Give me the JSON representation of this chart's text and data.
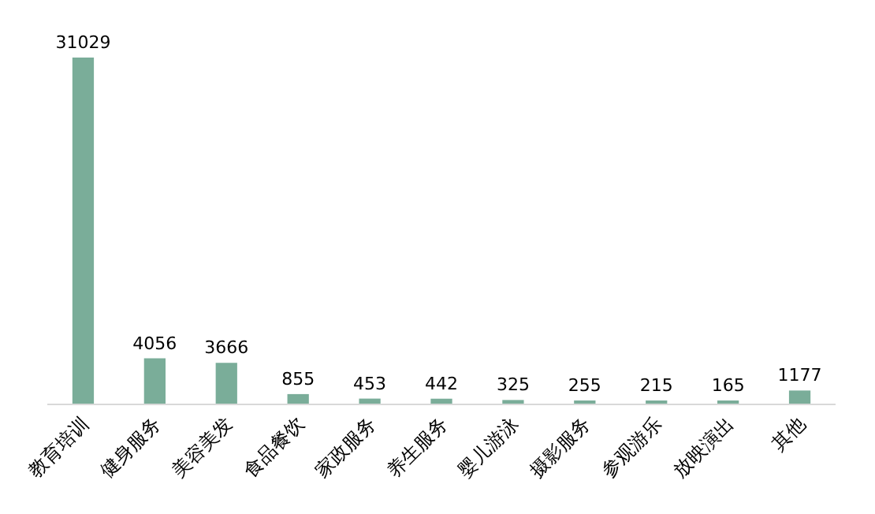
{
  "chart_data": {
    "type": "bar",
    "categories": [
      "教育培训",
      "健身服务",
      "美容美发",
      "食品餐饮",
      "家政服务",
      "养生服务",
      "婴儿游泳",
      "摄影服务",
      "参观游乐",
      "放映演出",
      "其他"
    ],
    "values": [
      31029,
      4056,
      3666,
      855,
      453,
      442,
      325,
      255,
      215,
      165,
      1177
    ],
    "color": "#7aad99",
    "data_labels": true
  }
}
